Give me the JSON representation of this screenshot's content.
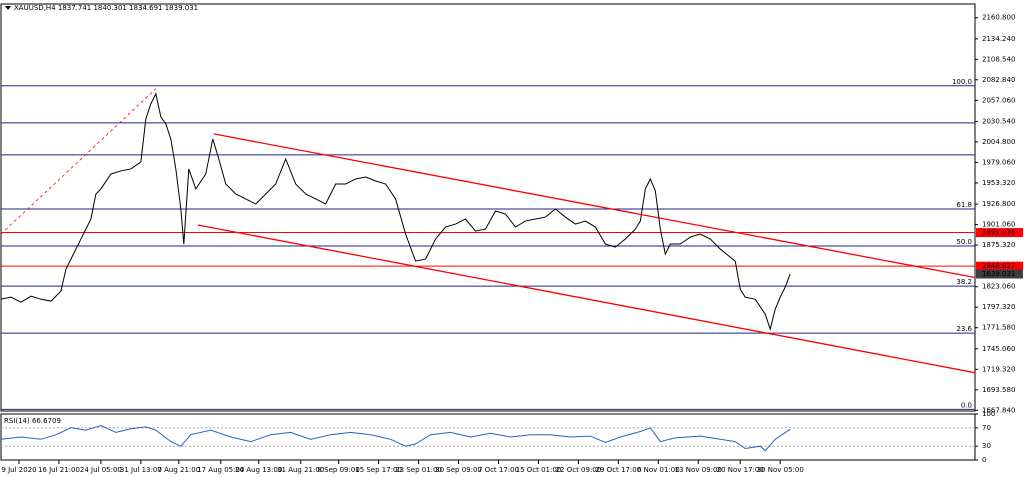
{
  "chart_data": [
    {
      "type": "line",
      "title": "XAUUSD,H4  1837.741 1840.301 1834.691 1839.031",
      "color": "#000000",
      "x": [
        0,
        10,
        20,
        30,
        40,
        50,
        60,
        65,
        70,
        80,
        90,
        95,
        100,
        110,
        120,
        130,
        140,
        145,
        150,
        155,
        160,
        165,
        170,
        175,
        180,
        183,
        188,
        195,
        205,
        212,
        218,
        225,
        235,
        245,
        255,
        265,
        275,
        285,
        295,
        305,
        315,
        325,
        335,
        345,
        355,
        365,
        375,
        385,
        395,
        405,
        415,
        425,
        435,
        445,
        455,
        465,
        475,
        485,
        495,
        505,
        515,
        525,
        535,
        545,
        555,
        565,
        575,
        585,
        595,
        605,
        615,
        625,
        635,
        640,
        645,
        650,
        655,
        660,
        665,
        670,
        680,
        690,
        700,
        710,
        720,
        730,
        735,
        740,
        745,
        755,
        765,
        770,
        775,
        780,
        785,
        790
      ],
      "values": [
        1807.4,
        1809.9,
        1803.6,
        1811.2,
        1807.4,
        1804.9,
        1817.5,
        1845.1,
        1857.7,
        1882.9,
        1908.0,
        1939.5,
        1945.8,
        1964.6,
        1968.4,
        1970.9,
        1979.7,
        2033.8,
        2052.6,
        2065.2,
        2036.3,
        2027.5,
        2008.6,
        1970.9,
        1920.6,
        1876.6,
        1970.9,
        1945.8,
        1964.6,
        2008.6,
        1983.5,
        1952.0,
        1939.5,
        1933.2,
        1926.9,
        1939.5,
        1952.0,
        1983.5,
        1952.0,
        1939.5,
        1933.2,
        1926.9,
        1952.0,
        1952.0,
        1958.3,
        1960.8,
        1955.8,
        1952.0,
        1933.2,
        1889.2,
        1855.2,
        1857.7,
        1882.9,
        1898.0,
        1901.7,
        1908.0,
        1892.9,
        1895.4,
        1918.1,
        1914.3,
        1898.0,
        1905.5,
        1908.0,
        1910.5,
        1920.6,
        1910.5,
        1901.7,
        1905.5,
        1898.0,
        1876.6,
        1872.8,
        1882.9,
        1895.4,
        1905.5,
        1945.8,
        1958.3,
        1943.3,
        1895.4,
        1864.0,
        1876.6,
        1876.6,
        1885.4,
        1889.2,
        1882.9,
        1870.3,
        1860.2,
        1855.2,
        1820.0,
        1809.9,
        1807.4,
        1788.6,
        1769.7,
        1794.8,
        1809.9,
        1822.5,
        1839.031
      ],
      "xlim": [
        0,
        975
      ],
      "ylim": [
        1667,
        2178
      ],
      "yticks": [
        {
          "value": 2160.8,
          "label": "2160.800"
        },
        {
          "value": 2134.24,
          "label": "2134.240"
        },
        {
          "value": 2108.54,
          "label": "2108.540"
        },
        {
          "value": 2082.84,
          "label": "2082.840"
        },
        {
          "value": 2057.06,
          "label": "2057.060"
        },
        {
          "value": 2030.54,
          "label": "2030.540"
        },
        {
          "value": 2004.8,
          "label": "2004.800"
        },
        {
          "value": 1979.06,
          "label": "1979.060"
        },
        {
          "value": 1953.32,
          "label": "1953.320"
        },
        {
          "value": 1926.8,
          "label": "1926.800"
        },
        {
          "value": 1901.06,
          "label": "1901.060"
        },
        {
          "value": 1875.32,
          "label": "1875.320"
        },
        {
          "value": 1823.06,
          "label": "1823.060"
        },
        {
          "value": 1797.32,
          "label": "1797.320"
        },
        {
          "value": 1771.58,
          "label": "1771.580"
        },
        {
          "value": 1745.06,
          "label": "1745.060"
        },
        {
          "value": 1719.32,
          "label": "1719.320"
        },
        {
          "value": 1693.58,
          "label": "1693.580"
        },
        {
          "value": 1667.84,
          "label": "1667.840"
        }
      ],
      "levels": [
        {
          "value": 2075.3,
          "label": "100.0"
        },
        {
          "value": 2028.8
        },
        {
          "value": 1988.5
        },
        {
          "value": 1920.6,
          "label": "61.8"
        },
        {
          "value": 1874.1,
          "label": "50.0"
        },
        {
          "value": 1823.8,
          "label": "38.2"
        },
        {
          "value": 1764.7,
          "label": "23.6"
        },
        {
          "value": 1669.1,
          "label": "0.0"
        }
      ],
      "level_color": "#1c2680",
      "price_lines": [
        {
          "value": 1891.036,
          "color": "#ff0000"
        },
        {
          "value": 1848.827,
          "color": "#ff0000"
        }
      ],
      "current_price": {
        "value": 1839.031,
        "color": "#3c3c3c"
      },
      "trend_lines": [
        {
          "x": [
            213,
            975
          ],
          "values": [
            2014.9,
            1834.6
          ],
          "color": "#ff0000"
        },
        {
          "x": [
            197,
            975
          ],
          "values": [
            1900.5,
            1715.1
          ],
          "color": "#ff0000"
        },
        {
          "x": [
            0,
            155
          ],
          "values": [
            1889.2,
            2071.5
          ],
          "color": "#ff0000",
          "dashed": true
        }
      ]
    },
    {
      "type": "line",
      "title": "RSI(14) 66.6709",
      "color": "#1e64c8",
      "x": [
        0,
        20,
        40,
        55,
        70,
        85,
        100,
        115,
        130,
        145,
        155,
        170,
        180,
        190,
        210,
        230,
        250,
        270,
        290,
        310,
        330,
        350,
        370,
        390,
        405,
        415,
        430,
        450,
        470,
        490,
        510,
        530,
        550,
        570,
        590,
        605,
        620,
        640,
        650,
        660,
        675,
        700,
        720,
        735,
        745,
        760,
        765,
        775,
        790
      ],
      "values": [
        45,
        50,
        45,
        55,
        70,
        65,
        75,
        60,
        68,
        72,
        65,
        40,
        30,
        55,
        65,
        50,
        40,
        55,
        60,
        45,
        55,
        60,
        55,
        45,
        30,
        35,
        55,
        60,
        50,
        58,
        50,
        55,
        55,
        50,
        52,
        38,
        50,
        62,
        70,
        40,
        48,
        52,
        45,
        40,
        25,
        30,
        20,
        45,
        66.6709
      ],
      "xlim": [
        0,
        975
      ],
      "ylim": [
        0,
        100
      ],
      "yticks": [
        100,
        70,
        30,
        0
      ],
      "levels": [
        70,
        30
      ],
      "xticks": [
        {
          "value": 18,
          "label": "9 Jul 2020"
        },
        {
          "value": 58,
          "label": "16 Jul 21:00"
        },
        {
          "value": 100,
          "label": "24 Jul 05:00"
        },
        {
          "value": 140,
          "label": "31 Jul 13:00"
        },
        {
          "value": 178,
          "label": "7 Aug 21:00"
        },
        {
          "value": 220,
          "label": "17 Aug 05:00"
        },
        {
          "value": 258,
          "label": "24 Aug 13:00"
        },
        {
          "value": 300,
          "label": "31 Aug 21:00"
        },
        {
          "value": 338,
          "label": "8 Sep 09:00"
        },
        {
          "value": 378,
          "label": "15 Sep 17:00"
        },
        {
          "value": 418,
          "label": "23 Sep 01:00"
        },
        {
          "value": 458,
          "label": "30 Sep 09:00"
        },
        {
          "value": 498,
          "label": "7 Oct 17:00"
        },
        {
          "value": 538,
          "label": "15 Oct 01:00"
        },
        {
          "value": 578,
          "label": "22 Oct 09:00"
        },
        {
          "value": 618,
          "label": "29 Oct 17:00"
        },
        {
          "value": 658,
          "label": "6 Nov 01:00"
        },
        {
          "value": 698,
          "label": "13 Nov 09:00"
        },
        {
          "value": 740,
          "label": "20 Nov 17:00"
        },
        {
          "value": 780,
          "label": "30 Nov 05:00"
        }
      ]
    }
  ]
}
